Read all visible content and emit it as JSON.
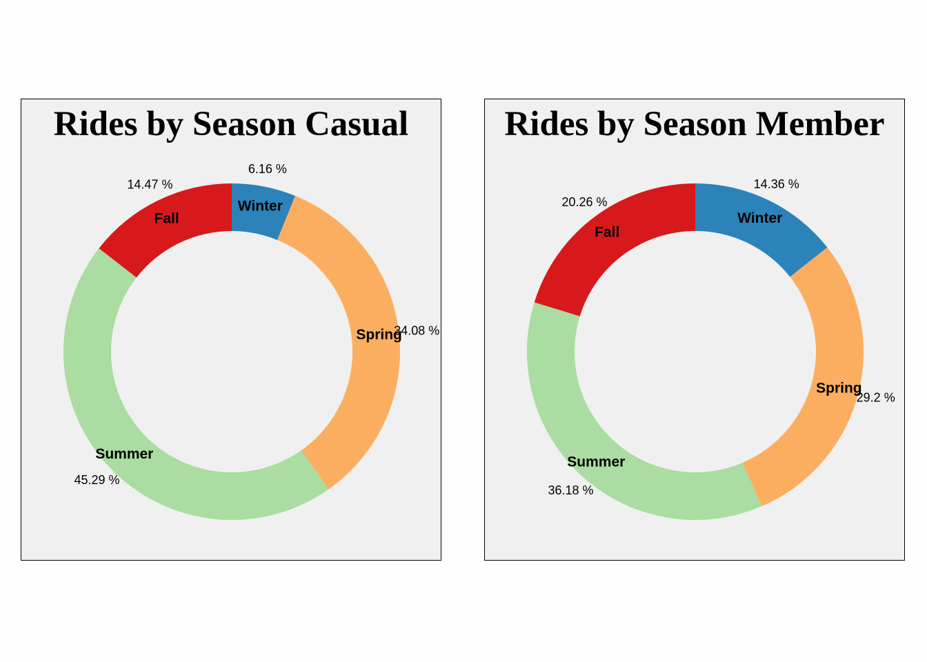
{
  "colors": {
    "Winter": "#2c83b9",
    "Spring": "#fcae60",
    "Summer": "#abdca2",
    "Fall": "#d8191c",
    "panel_background": "#f0f0f0"
  },
  "chart_data": [
    {
      "type": "pie",
      "subtype": "donut",
      "title": "Rides by Season Casual",
      "categories": [
        "Winter",
        "Spring",
        "Summer",
        "Fall"
      ],
      "values": [
        6.16,
        34.08,
        45.29,
        14.47
      ],
      "value_labels": [
        "6.16 %",
        "34.08 %",
        "45.29 %",
        "14.47 %"
      ],
      "unit": "%",
      "legend": "none"
    },
    {
      "type": "pie",
      "subtype": "donut",
      "title": "Rides by Season Member",
      "categories": [
        "Winter",
        "Spring",
        "Summer",
        "Fall"
      ],
      "values": [
        14.36,
        29.2,
        36.18,
        20.26
      ],
      "value_labels": [
        "14.36 %",
        "29.2 %",
        "36.18 %",
        "20.26 %"
      ],
      "unit": "%",
      "legend": "none"
    }
  ]
}
